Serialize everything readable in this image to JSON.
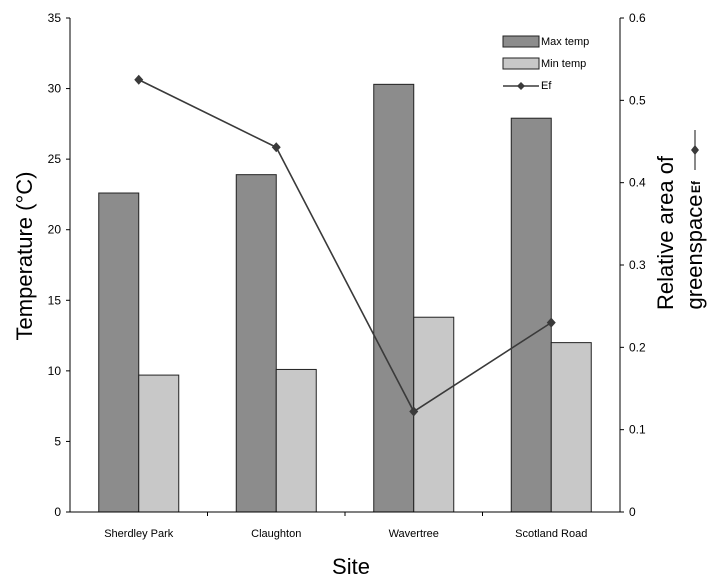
{
  "chart_data": {
    "type": "bar",
    "categories": [
      "Sherdley Park",
      "Claughton",
      "Wavertree",
      "Scotland Road"
    ],
    "series": [
      {
        "name": "Max temp",
        "type": "bar",
        "axis": "left",
        "color": "#8c8c8c",
        "values": [
          22.6,
          23.9,
          30.3,
          27.9
        ]
      },
      {
        "name": "Min temp",
        "type": "bar",
        "axis": "left",
        "color": "#c8c8c8",
        "values": [
          9.7,
          10.1,
          13.8,
          12.0
        ]
      },
      {
        "name": "Ef",
        "type": "line",
        "axis": "right",
        "color": "#3a3a3a",
        "marker": "diamond",
        "values": [
          0.525,
          0.443,
          0.122,
          0.23
        ]
      }
    ],
    "xlabel": "Site",
    "ylabel": "Temperature (°C)",
    "y2label_line1": "Relative area of",
    "y2label_line2": "greenspace",
    "y2label_tag": "Ef",
    "ylim": [
      0,
      35
    ],
    "y2lim": [
      0,
      0.6
    ],
    "yticks": [
      "0",
      "5",
      "10",
      "15",
      "20",
      "25",
      "30",
      "35"
    ],
    "y2ticks": [
      "0",
      "0.1",
      "0.2",
      "0.3",
      "0.4",
      "0.5",
      "0.6"
    ],
    "legend_position": "top-right",
    "grid": false
  }
}
